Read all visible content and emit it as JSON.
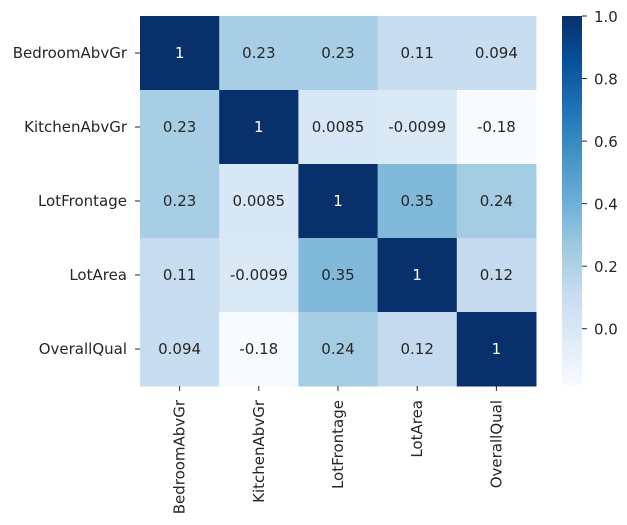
{
  "chart_data": {
    "type": "heatmap",
    "title": "",
    "xlabel": "",
    "ylabel": "",
    "x_categories": [
      "BedroomAbvGr",
      "KitchenAbvGr",
      "LotFrontage",
      "LotArea",
      "OverallQual"
    ],
    "y_categories": [
      "BedroomAbvGr",
      "KitchenAbvGr",
      "LotFrontage",
      "LotArea",
      "OverallQual"
    ],
    "values": [
      [
        1,
        0.23,
        0.23,
        0.11,
        0.094
      ],
      [
        0.23,
        1,
        0.0085,
        -0.0099,
        -0.18
      ],
      [
        0.23,
        0.0085,
        1,
        0.35,
        0.24
      ],
      [
        0.11,
        -0.0099,
        0.35,
        1,
        0.12
      ],
      [
        0.094,
        -0.18,
        0.24,
        0.12,
        1
      ]
    ],
    "annotations": [
      [
        "1",
        "0.23",
        "0.23",
        "0.11",
        "0.094"
      ],
      [
        "0.23",
        "1",
        "0.0085",
        "-0.0099",
        "-0.18"
      ],
      [
        "0.23",
        "0.0085",
        "1",
        "0.35",
        "0.24"
      ],
      [
        "0.11",
        "-0.0099",
        "0.35",
        "1",
        "0.12"
      ],
      [
        "0.094",
        "-0.18",
        "0.24",
        "0.12",
        "1"
      ]
    ],
    "colormap": "Blues",
    "color_range": [
      -0.18,
      1.0
    ],
    "colorbar_ticks": [
      0.0,
      0.2,
      0.4,
      0.6,
      0.8,
      1.0
    ],
    "colorbar_tick_labels": [
      "0.0",
      "0.2",
      "0.4",
      "0.6",
      "0.8",
      "1.0"
    ],
    "grid": false,
    "colors": {
      "text_dark": "#262626",
      "text_light": "#ffffff",
      "blues": [
        "#f7fbff",
        "#deebf7",
        "#c6dbef",
        "#9ecae1",
        "#6baed6",
        "#4292c6",
        "#2171b5",
        "#08519c",
        "#08306b"
      ]
    }
  }
}
